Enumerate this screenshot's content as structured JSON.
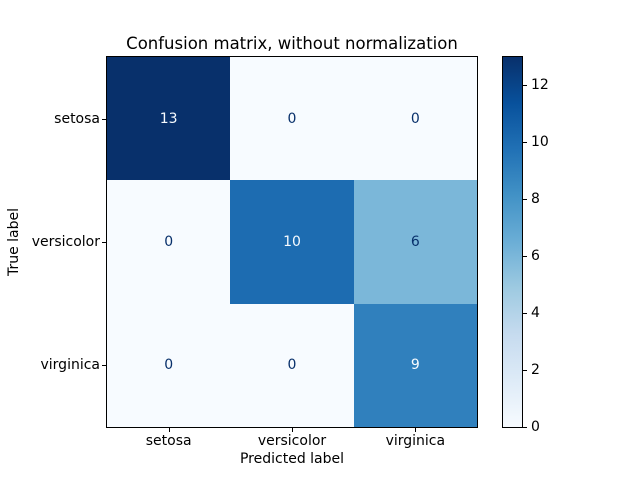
{
  "chart_data": {
    "type": "heatmap",
    "title": "Confusion matrix, without normalization",
    "xlabel": "Predicted label",
    "ylabel": "True label",
    "categories": [
      "setosa",
      "versicolor",
      "virginica"
    ],
    "matrix": [
      [
        13,
        0,
        0
      ],
      [
        0,
        10,
        6
      ],
      [
        0,
        0,
        9
      ]
    ],
    "vmin": 0,
    "vmax": 13,
    "colormap": "Blues",
    "grid": false,
    "legend_position": "right-colorbar",
    "cell_colors": [
      [
        "#08306b",
        "#f7fbff",
        "#f7fbff"
      ],
      [
        "#f7fbff",
        "#1d6cb1",
        "#7bb7d9"
      ],
      [
        "#f7fbff",
        "#f7fbff",
        "#3080bd"
      ]
    ],
    "cell_text_colors": [
      [
        "#f7fbff",
        "#08306b",
        "#08306b"
      ],
      [
        "#08306b",
        "#f7fbff",
        "#08306b"
      ],
      [
        "#08306b",
        "#08306b",
        "#f7fbff"
      ]
    ],
    "colorbar": {
      "ticks": [
        0,
        2,
        4,
        6,
        8,
        10,
        12
      ],
      "gradient": [
        {
          "pos": 0,
          "color": "#f7fbff"
        },
        {
          "pos": 0.125,
          "color": "#deebf7"
        },
        {
          "pos": 0.25,
          "color": "#c6dbef"
        },
        {
          "pos": 0.375,
          "color": "#9ecae1"
        },
        {
          "pos": 0.5,
          "color": "#6baed6"
        },
        {
          "pos": 0.625,
          "color": "#4292c6"
        },
        {
          "pos": 0.75,
          "color": "#2171b5"
        },
        {
          "pos": 0.875,
          "color": "#08519c"
        },
        {
          "pos": 1,
          "color": "#08306b"
        }
      ]
    }
  }
}
